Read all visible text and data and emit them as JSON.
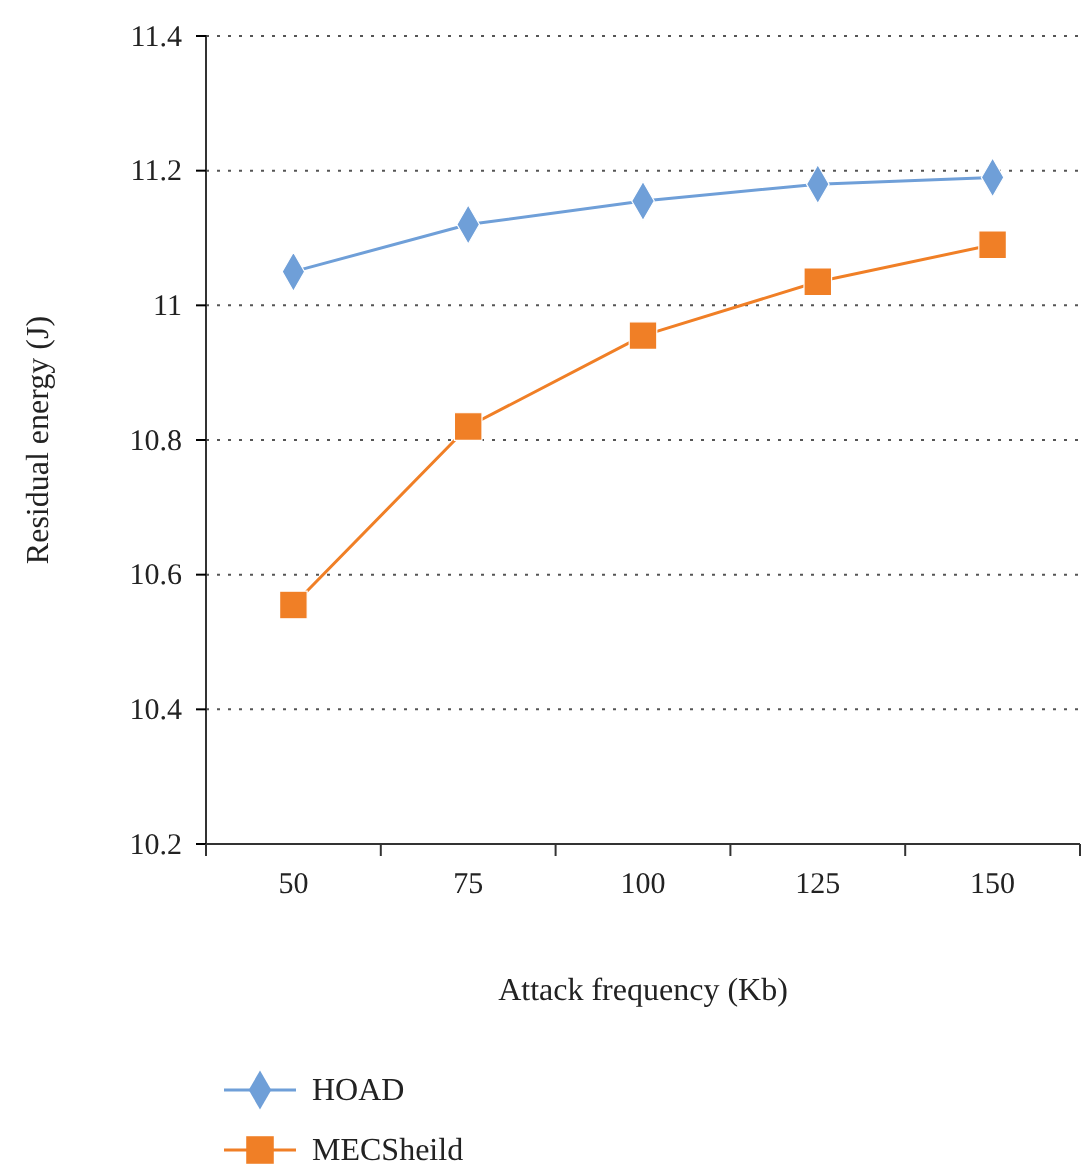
{
  "chart_data": {
    "type": "line",
    "xlabel": "Attack frequency (Kb)",
    "ylabel": "Residual energy (J)",
    "categories": [
      "50",
      "75",
      "100",
      "125",
      "150"
    ],
    "series": [
      {
        "name": "HOAD",
        "color": "#6f9fd8",
        "marker": "diamond",
        "values": [
          11.05,
          11.12,
          11.155,
          11.18,
          11.19
        ]
      },
      {
        "name": "MECSheild",
        "color": "#f07f26",
        "marker": "square",
        "values": [
          10.555,
          10.82,
          10.955,
          11.035,
          11.09
        ]
      }
    ],
    "ylim": [
      10.2,
      11.4
    ],
    "yticks": [
      {
        "value": 10.2,
        "label": "10.2"
      },
      {
        "value": 10.4,
        "label": "10.4"
      },
      {
        "value": 10.6,
        "label": "10.6"
      },
      {
        "value": 10.8,
        "label": "10.8"
      },
      {
        "value": 11,
        "label": "11"
      },
      {
        "value": 11.2,
        "label": "11.2"
      },
      {
        "value": 11.4,
        "label": "11.4"
      }
    ],
    "grid": "y",
    "legend": "bottom"
  }
}
